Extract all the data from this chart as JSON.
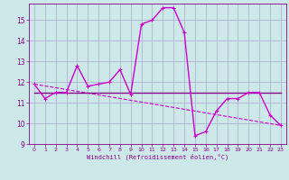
{
  "background_color": "#cde8e8",
  "grid_color": "#aaaacc",
  "line_color_main": "#cc00cc",
  "line_color_flat": "#880088",
  "line_color_trend": "#cc00cc",
  "xlim": [
    -0.5,
    23.5
  ],
  "ylim": [
    9,
    15.8
  ],
  "yticks": [
    9,
    10,
    11,
    12,
    13,
    14,
    15
  ],
  "xticks": [
    0,
    1,
    2,
    3,
    4,
    5,
    6,
    7,
    8,
    9,
    10,
    11,
    12,
    13,
    14,
    15,
    16,
    17,
    18,
    19,
    20,
    21,
    22,
    23
  ],
  "hours": [
    0,
    1,
    2,
    3,
    4,
    5,
    6,
    7,
    8,
    9,
    10,
    11,
    12,
    13,
    14,
    15,
    16,
    17,
    18,
    19,
    20,
    21,
    22,
    23
  ],
  "windchill": [
    11.9,
    11.2,
    11.5,
    11.5,
    12.8,
    11.8,
    11.9,
    12.0,
    12.6,
    11.4,
    14.8,
    15.0,
    15.6,
    15.6,
    14.4,
    9.4,
    9.6,
    10.6,
    11.2,
    11.2,
    11.5,
    11.5,
    10.4,
    9.9
  ],
  "flat_line": [
    11.5,
    11.5,
    11.5,
    11.5,
    11.5,
    11.5,
    11.5,
    11.5,
    11.5,
    11.5,
    11.5,
    11.5,
    11.5,
    11.5,
    11.5,
    11.5,
    11.5,
    11.5,
    11.5,
    11.5,
    11.5,
    11.5,
    11.5,
    11.5
  ],
  "trend_x": [
    0,
    23
  ],
  "trend_y": [
    11.9,
    9.9
  ],
  "xlabel": "Windchill (Refroidissement éolien,°C)",
  "tick_color": "#880088",
  "spine_color": "#880088"
}
